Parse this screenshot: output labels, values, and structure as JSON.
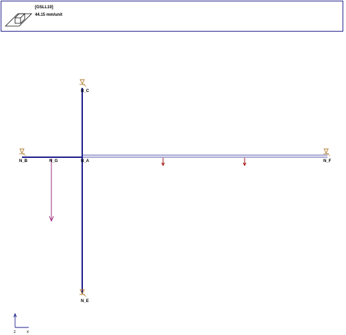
{
  "legend": {
    "load_case": "[GSLL10]",
    "load_value": "44.15 mm/unit",
    "icon": "shell-section-icon"
  },
  "nodes": {
    "n_c": "N_C",
    "n_b": "N_B",
    "n_g": "N_G",
    "n_a": "N_A",
    "n_e": "N_E",
    "n_f": "N_F"
  },
  "axes": {
    "z": "z",
    "x": "x"
  },
  "colors": {
    "frame": "#1a1a8c",
    "deflection": "#9a2a7a",
    "support": "#b07a2a",
    "load_arrow": "#a01010",
    "legend_border": "#20208a"
  }
}
